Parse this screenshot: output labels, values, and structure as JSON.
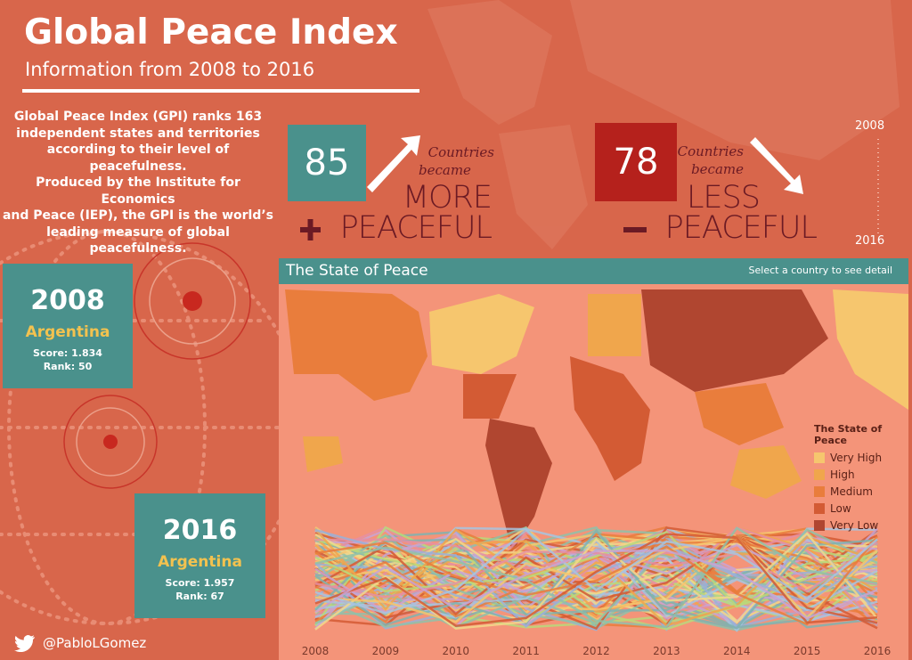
{
  "header": {
    "title": "Global Peace Index",
    "subtitle": "Information from 2008 to 2016"
  },
  "intro": [
    "Global Peace Index (GPI) ranks 163",
    "independent states and territories",
    "according to their level of peacefulness.",
    "Produced by the Institute for Economics",
    "and Peace (IEP), the GPI is the world’s",
    "leading measure of global peacefulness."
  ],
  "more": {
    "count": "85",
    "line1": "Countries",
    "line2": "became",
    "word1": "MORE",
    "word2": "PEACEFUL"
  },
  "less": {
    "count": "78",
    "line1": "Countries",
    "line2": "became",
    "word1": "LESS",
    "word2": "PEACEFUL"
  },
  "timeline": {
    "start": "2008",
    "end": "2016"
  },
  "cards": [
    {
      "year": "2008",
      "country": "Argentina",
      "score": "Score: 1.834",
      "rank": "Rank: 50"
    },
    {
      "year": "2016",
      "country": "Argentina",
      "score": "Score: 1.957",
      "rank": "Rank: 67"
    }
  ],
  "map": {
    "title": "The State of Peace",
    "hint": "Select a country to see detail",
    "legend": {
      "title": "The State of Peace",
      "items": [
        {
          "label": "Very High",
          "color": "#f6c66e"
        },
        {
          "label": "High",
          "color": "#f0a64c"
        },
        {
          "label": "Medium",
          "color": "#e97d3c"
        },
        {
          "label": "Low",
          "color": "#d35b34"
        },
        {
          "label": "Very Low",
          "color": "#b04630"
        }
      ]
    }
  },
  "bump_axis": [
    "2008",
    "2009",
    "2010",
    "2011",
    "2012",
    "2013",
    "2014",
    "2015",
    "2016"
  ],
  "footer": {
    "handle": "@PabloLGomez"
  }
}
